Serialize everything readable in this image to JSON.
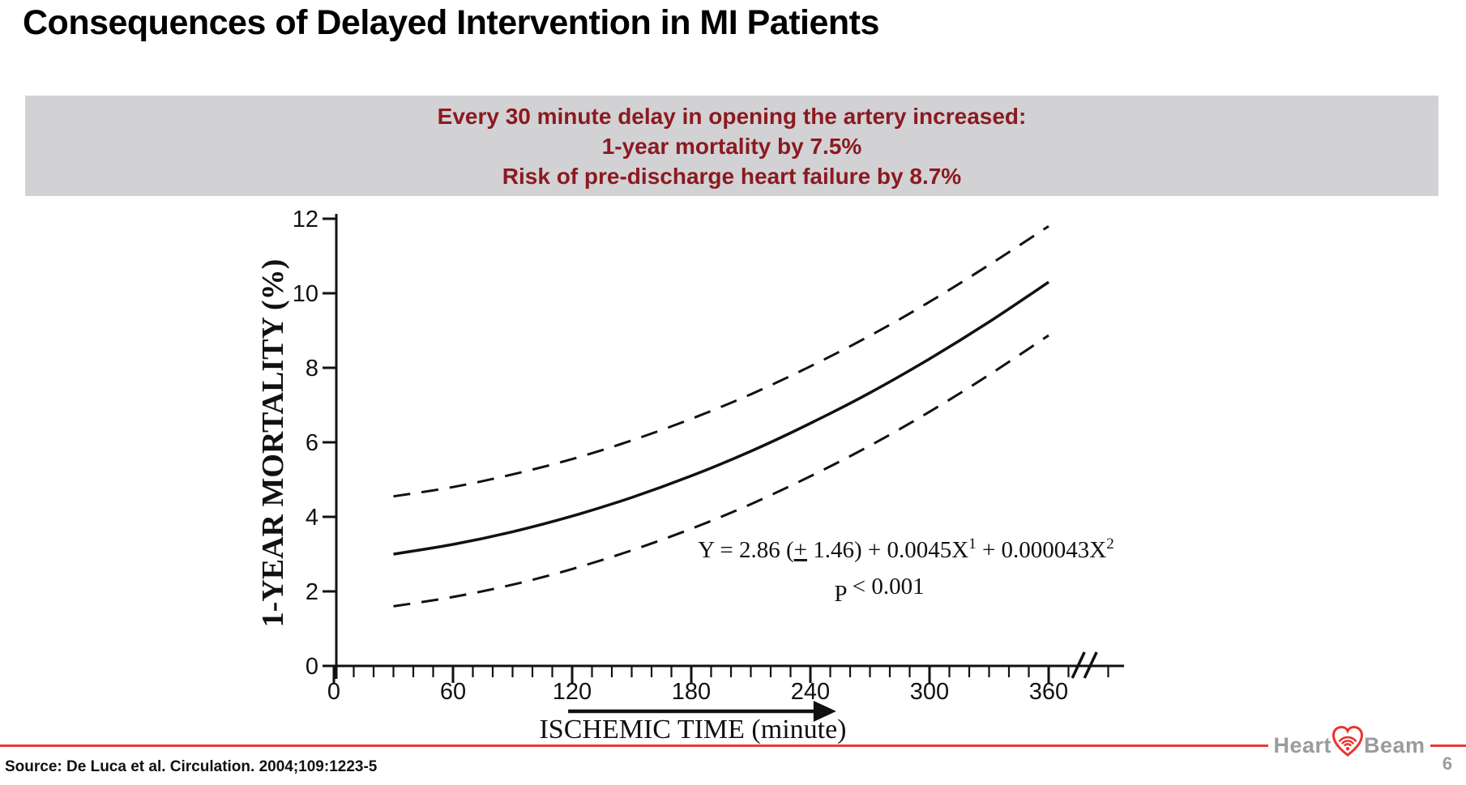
{
  "slide": {
    "title": "Consequences of Delayed Intervention in MI Patients",
    "page_number": "6",
    "source": "Source:  De Luca et al. Circulation. 2004;109:1223-5"
  },
  "banner": {
    "lines": [
      "Every 30 minute delay in opening the artery increased:",
      "1-year mortality by 7.5%",
      "Risk of pre-discharge heart failure by 8.7%"
    ],
    "bg_color": "#d2d2d5",
    "text_color": "#8b1a20"
  },
  "logo": {
    "word1": "Heart",
    "word2": "Beam",
    "heart_color": "#e8352e",
    "text_color": "#9b9b9d"
  },
  "footer": {
    "divider_color": "#ee3a33"
  },
  "chart_data": {
    "type": "line",
    "title": "",
    "xlabel": "ISCHEMIC TIME (minute)",
    "ylabel": "1-YEAR MORTALITY (%)",
    "xlim": [
      0,
      398
    ],
    "ylim": [
      0,
      12
    ],
    "x_ticks": [
      0,
      60,
      120,
      180,
      240,
      300,
      360
    ],
    "x_minor_tick_step": 10,
    "y_ticks": [
      0,
      2,
      4,
      6,
      8,
      10,
      12
    ],
    "axis_break_x": 376,
    "grid": false,
    "legend": "none",
    "x": [
      30,
      60,
      90,
      120,
      150,
      180,
      210,
      240,
      270,
      300,
      330,
      360
    ],
    "series": [
      {
        "name": "predicted-mortality",
        "style": "solid",
        "values": [
          3.0,
          3.26,
          3.6,
          4.02,
          4.52,
          5.1,
          5.76,
          6.51,
          7.33,
          8.24,
          9.23,
          10.3
        ]
      },
      {
        "name": "upper-confidence-bound",
        "style": "dashed",
        "values": [
          4.55,
          4.8,
          5.14,
          5.55,
          6.05,
          6.63,
          7.29,
          8.04,
          8.86,
          9.77,
          10.76,
          11.8
        ]
      },
      {
        "name": "lower-confidence-bound",
        "style": "dashed",
        "values": [
          1.6,
          1.85,
          2.18,
          2.6,
          3.1,
          3.68,
          4.34,
          5.09,
          5.91,
          6.82,
          7.81,
          8.87
        ]
      }
    ],
    "annotations": {
      "equation": {
        "pre": "Y = 2.86 (",
        "plus_underlined": "+",
        "mid": " 1.46) + 0.0045X",
        "sup1": "1",
        "mid2": " + 0.000043X",
        "sup2": "2"
      },
      "p_label": "P",
      "p_value": "< 0.001"
    },
    "x_arrow": {
      "from_min": 118,
      "to_min": 253
    }
  }
}
